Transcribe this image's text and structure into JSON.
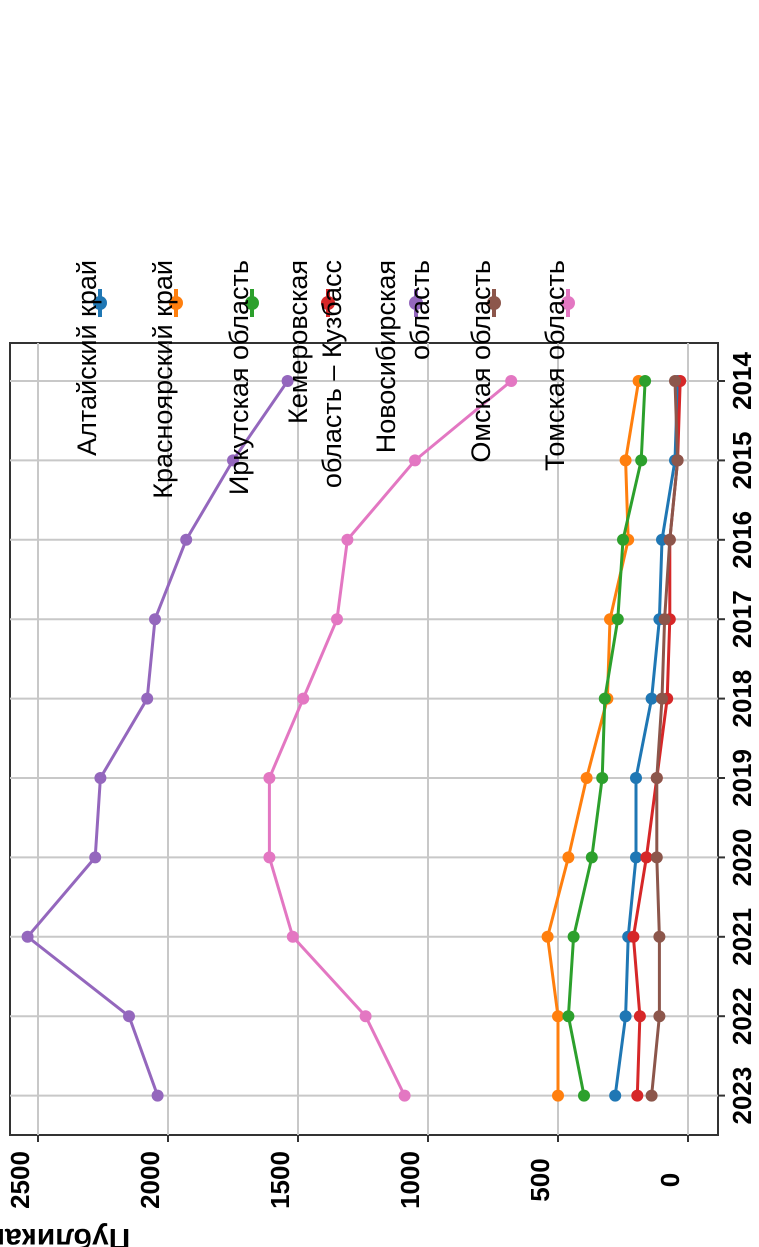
{
  "chart_data": {
    "type": "line",
    "ylabel": "Публикации",
    "xlabel": "",
    "x": [
      2014,
      2015,
      2016,
      2017,
      2018,
      2019,
      2020,
      2021,
      2022,
      2023
    ],
    "xticks": [
      "2014",
      "2015",
      "2016",
      "2017",
      "2018",
      "2019",
      "2020",
      "2021",
      "2022",
      "2023"
    ],
    "yticks": [
      "0",
      "500",
      "1000",
      "1500",
      "2000",
      "2500"
    ],
    "ylim": [
      -50,
      2680
    ],
    "grid": true,
    "legend_position": "right",
    "series": [
      {
        "name": "Алтайский край",
        "color": "#1f77b4",
        "values": [
          40,
          50,
          100,
          110,
          140,
          200,
          200,
          230,
          240,
          280
        ]
      },
      {
        "name": "Красноярский край",
        "color": "#ff7f0e",
        "values": [
          190,
          240,
          230,
          300,
          310,
          390,
          460,
          540,
          500,
          500
        ]
      },
      {
        "name": "Иркутская область",
        "color": "#2ca02c",
        "values": [
          165,
          180,
          250,
          270,
          320,
          330,
          370,
          440,
          460,
          400
        ]
      },
      {
        "name": "Кемеровская\nобласть – Кузбасс",
        "color": "#d62728",
        "values": [
          30,
          40,
          70,
          70,
          80,
          120,
          160,
          210,
          185,
          195
        ]
      },
      {
        "name": "Новосибирская\nобласть",
        "color": "#9467bd",
        "values": [
          1540,
          1750,
          1930,
          2050,
          2080,
          2260,
          2280,
          2540,
          2150,
          2040
        ]
      },
      {
        "name": "Омская область",
        "color": "#8c564b",
        "values": [
          50,
          40,
          70,
          90,
          100,
          120,
          120,
          110,
          110,
          140
        ]
      },
      {
        "name": "Томская область",
        "color": "#e377c2",
        "values": [
          680,
          1050,
          1310,
          1350,
          1480,
          1610,
          1610,
          1520,
          1240,
          1090
        ]
      }
    ]
  }
}
